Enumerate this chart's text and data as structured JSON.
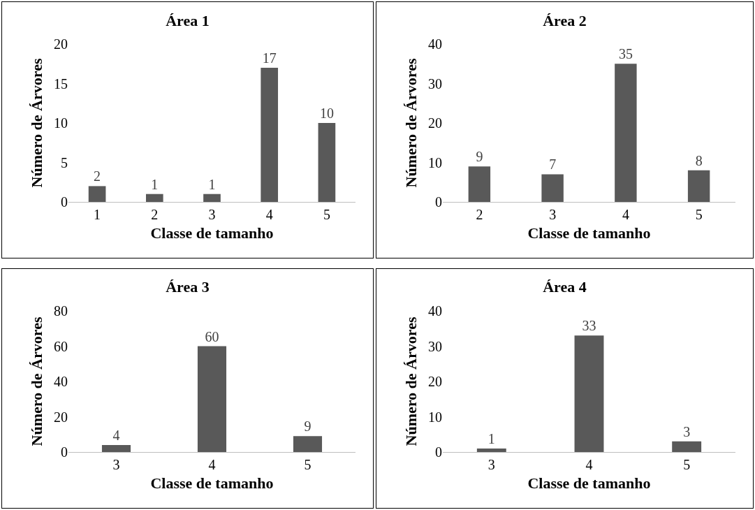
{
  "chart_data": [
    {
      "type": "bar",
      "title": "Área 1",
      "xlabel": "Classe de tamanho",
      "ylabel": "Número de Árvores",
      "categories": [
        "1",
        "2",
        "3",
        "4",
        "5"
      ],
      "values": [
        2,
        1,
        1,
        17,
        10
      ],
      "color": "#595959",
      "ylim": [
        0,
        20
      ],
      "yticks": [
        0,
        5,
        10,
        15,
        20
      ],
      "data_labels": true
    },
    {
      "type": "bar",
      "title": "Área 2",
      "xlabel": "Classe de tamanho",
      "ylabel": "Número de Árvores",
      "categories": [
        "2",
        "3",
        "4",
        "5"
      ],
      "values": [
        9,
        7,
        35,
        8
      ],
      "color": "#595959",
      "ylim": [
        0,
        40
      ],
      "yticks": [
        0,
        10,
        20,
        30,
        40
      ],
      "data_labels": true
    },
    {
      "type": "bar",
      "title": "Área 3",
      "xlabel": "Classe de tamanho",
      "ylabel": "Número de Árvores",
      "categories": [
        "3",
        "4",
        "5"
      ],
      "values": [
        4,
        60,
        9
      ],
      "color": "#595959",
      "ylim": [
        0,
        80
      ],
      "yticks": [
        0,
        20,
        40,
        60,
        80
      ],
      "data_labels": true
    },
    {
      "type": "bar",
      "title": "Área 4",
      "xlabel": "Classe de tamanho",
      "ylabel": "Número de Árvores",
      "categories": [
        "3",
        "4",
        "5"
      ],
      "values": [
        1,
        33,
        3
      ],
      "color": "#595959",
      "ylim": [
        0,
        40
      ],
      "yticks": [
        0,
        10,
        20,
        30,
        40
      ],
      "data_labels": true
    }
  ]
}
